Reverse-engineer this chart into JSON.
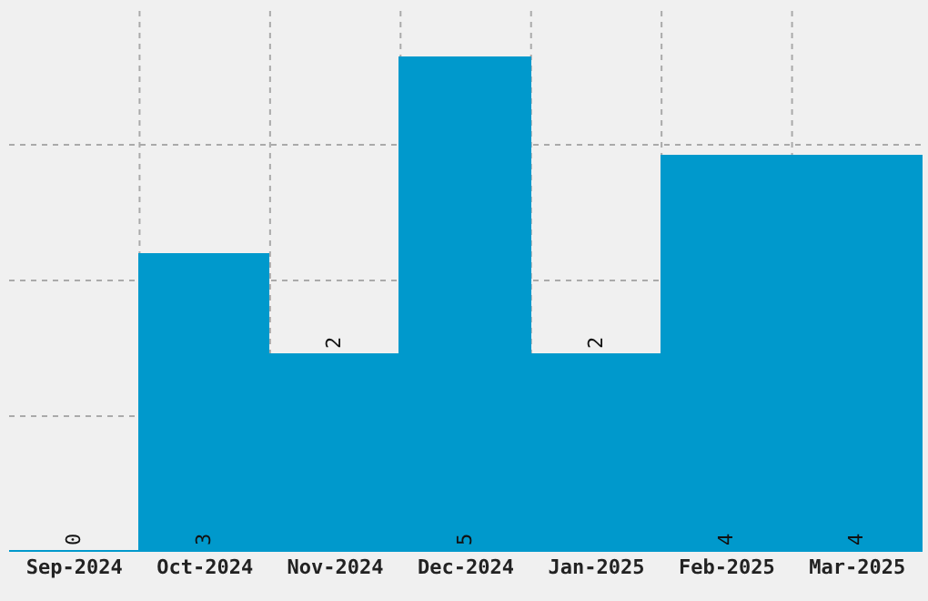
{
  "chart_data": {
    "type": "bar",
    "categories": [
      "Sep-2024",
      "Oct-2024",
      "Nov-2024",
      "Dec-2024",
      "Jan-2025",
      "Feb-2025",
      "Mar-2025"
    ],
    "values": [
      0,
      3,
      2,
      5,
      2,
      4,
      4
    ],
    "color": "#0099cc",
    "data_labels": true,
    "ylim": [
      0,
      5.5
    ],
    "yticks": [
      {
        "value": 1.375,
        "label": null
      },
      {
        "value": 2.75,
        "label": null
      },
      {
        "value": 4.125,
        "label": null
      }
    ],
    "tick_labels": "x",
    "grid": true
  }
}
